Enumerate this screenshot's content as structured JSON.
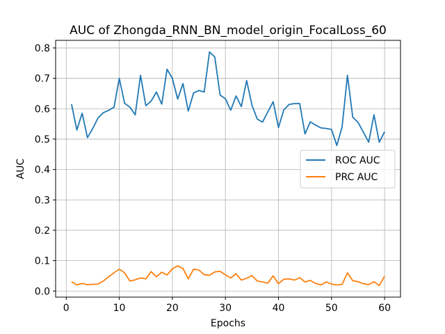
{
  "chart_data": {
    "type": "line",
    "title": "AUC of Zhongda_RNN_BN_model_origin_FocalLoss_60",
    "xlabel": "Epochs",
    "ylabel": "AUC",
    "xlim": [
      -2,
      63
    ],
    "ylim": [
      -0.02,
      0.825
    ],
    "xticks": [
      0,
      10,
      20,
      30,
      40,
      50,
      60
    ],
    "yticks": [
      0.0,
      0.1,
      0.2,
      0.3,
      0.4,
      0.5,
      0.6,
      0.7,
      0.8
    ],
    "grid": true,
    "legend_position": "center-right",
    "series": [
      {
        "name": "ROC AUC",
        "color": "#1f77b4",
        "x": [
          1,
          2,
          3,
          4,
          5,
          6,
          7,
          8,
          9,
          10,
          11,
          12,
          13,
          14,
          15,
          16,
          17,
          18,
          19,
          20,
          21,
          22,
          23,
          24,
          25,
          26,
          27,
          28,
          29,
          30,
          31,
          32,
          33,
          34,
          35,
          36,
          37,
          38,
          39,
          40,
          41,
          42,
          43,
          44,
          45,
          46,
          47,
          48,
          49,
          50,
          51,
          52,
          53,
          54,
          55,
          56,
          57,
          58,
          59,
          60
        ],
        "values": [
          0.615,
          0.53,
          0.585,
          0.505,
          0.535,
          0.57,
          0.587,
          0.595,
          0.605,
          0.7,
          0.618,
          0.605,
          0.58,
          0.71,
          0.61,
          0.625,
          0.655,
          0.615,
          0.73,
          0.7,
          0.632,
          0.683,
          0.592,
          0.652,
          0.66,
          0.655,
          0.787,
          0.77,
          0.645,
          0.633,
          0.595,
          0.642,
          0.607,
          0.693,
          0.612,
          0.566,
          0.556,
          0.59,
          0.623,
          0.538,
          0.596,
          0.614,
          0.617,
          0.617,
          0.517,
          0.557,
          0.546,
          0.537,
          0.535,
          0.532,
          0.479,
          0.541,
          0.71,
          0.572,
          0.555,
          0.523,
          0.49,
          0.58,
          0.49,
          0.524
        ]
      },
      {
        "name": "PRC AUC",
        "color": "#ff7f0e",
        "x": [
          1,
          2,
          3,
          4,
          5,
          6,
          7,
          8,
          9,
          10,
          11,
          12,
          13,
          14,
          15,
          16,
          17,
          18,
          19,
          20,
          21,
          22,
          23,
          24,
          25,
          26,
          27,
          28,
          29,
          30,
          31,
          32,
          33,
          34,
          35,
          36,
          37,
          38,
          39,
          40,
          41,
          42,
          43,
          44,
          45,
          46,
          47,
          48,
          49,
          50,
          51,
          52,
          53,
          54,
          55,
          56,
          57,
          58,
          59,
          60
        ],
        "values": [
          0.031,
          0.02,
          0.025,
          0.021,
          0.022,
          0.023,
          0.033,
          0.047,
          0.06,
          0.072,
          0.06,
          0.033,
          0.037,
          0.043,
          0.04,
          0.064,
          0.047,
          0.062,
          0.053,
          0.073,
          0.083,
          0.074,
          0.04,
          0.072,
          0.069,
          0.054,
          0.052,
          0.063,
          0.065,
          0.053,
          0.043,
          0.057,
          0.036,
          0.042,
          0.051,
          0.033,
          0.03,
          0.026,
          0.05,
          0.024,
          0.039,
          0.04,
          0.036,
          0.044,
          0.03,
          0.035,
          0.025,
          0.02,
          0.03,
          0.023,
          0.02,
          0.022,
          0.06,
          0.034,
          0.031,
          0.024,
          0.021,
          0.031,
          0.018,
          0.049
        ]
      }
    ]
  }
}
